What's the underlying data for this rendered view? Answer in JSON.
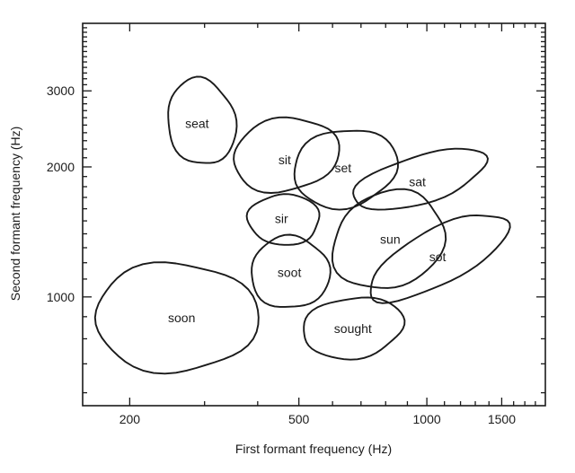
{
  "chart_data": {
    "type": "scatter",
    "title": "",
    "xlabel": "First formant frequency (Hz)",
    "ylabel": "Second formant frequency (Hz)",
    "xscale": "log",
    "yscale": "log",
    "xlim": [
      155,
      1900
    ],
    "ylim": [
      560,
      4300
    ],
    "x_major_ticks": [
      200,
      500,
      1000,
      1500
    ],
    "x_tick_labels": [
      "200",
      "500",
      "1000",
      "1500"
    ],
    "x_minor_ticks": [
      300,
      400,
      600,
      700,
      800,
      900,
      1100,
      1200,
      1300,
      1400,
      1600,
      1700,
      1800
    ],
    "y_major_ticks": [
      1000,
      2000,
      3000
    ],
    "y_tick_labels": [
      "1000",
      "2000",
      "3000"
    ],
    "y_minor_ticks": [
      600,
      700,
      800,
      900,
      1100,
      1200,
      1300,
      1400,
      1500,
      1600,
      1700,
      1800,
      1900,
      2100,
      2200,
      2300,
      2400,
      2500,
      2600,
      2700,
      2800,
      2900,
      3100,
      3200,
      3300,
      3400,
      3500,
      3600,
      3700,
      3800,
      3900,
      4000,
      4100,
      4200
    ],
    "grid": false,
    "legend": "none",
    "regions": [
      {
        "label": "seat",
        "f1": [
          245,
          355
        ],
        "f2": [
          2020,
          3200
        ],
        "center": [
          288,
          2520
        ],
        "tilt": -12
      },
      {
        "label": "sit",
        "f1": [
          350,
          620
        ],
        "f2": [
          1750,
          2600
        ],
        "center": [
          463,
          2080
        ],
        "tilt": -10
      },
      {
        "label": "set",
        "f1": [
          485,
          850
        ],
        "f2": [
          1610,
          2450
        ],
        "center": [
          635,
          1990
        ],
        "tilt": -12
      },
      {
        "label": "sat",
        "f1": [
          670,
          1380
        ],
        "f2": [
          1590,
          2200
        ],
        "center": [
          950,
          1850
        ],
        "tilt": -17
      },
      {
        "label": "sir",
        "f1": [
          380,
          560
        ],
        "f2": [
          1320,
          1730
        ],
        "center": [
          455,
          1520
        ],
        "tilt": 0
      },
      {
        "label": "sun",
        "f1": [
          600,
          1100
        ],
        "f2": [
          1040,
          1760
        ],
        "center": [
          820,
          1360
        ],
        "tilt": -26
      },
      {
        "label": "sot",
        "f1": [
          730,
          1550
        ],
        "f2": [
          980,
          1560
        ],
        "center": [
          1060,
          1240
        ],
        "tilt": -28
      },
      {
        "label": "soot",
        "f1": [
          385,
          590
        ],
        "f2": [
          940,
          1380
        ],
        "center": [
          475,
          1140
        ],
        "tilt": 0
      },
      {
        "label": "soon",
        "f1": [
          165,
          400
        ],
        "f2": [
          670,
          1200
        ],
        "center": [
          265,
          895
        ],
        "tilt": 0
      },
      {
        "label": "sought",
        "f1": [
          510,
          880
        ],
        "f2": [
          720,
          1000
        ],
        "center": [
          670,
          845
        ],
        "tilt": -8
      }
    ]
  }
}
